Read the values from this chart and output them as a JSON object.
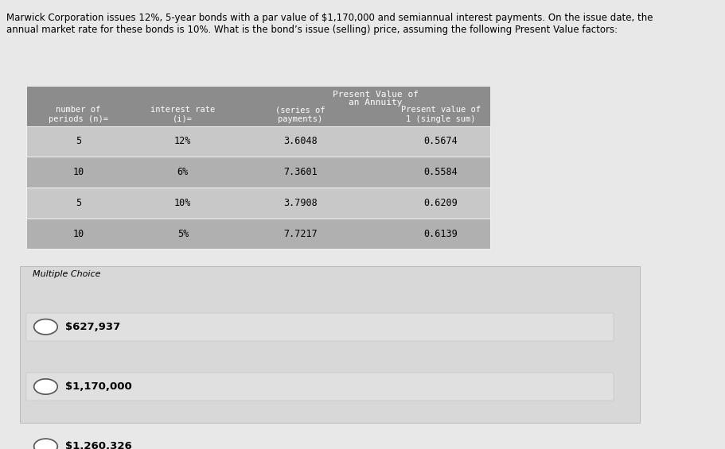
{
  "question_text": "Marwick Corporation issues 12%, 5-year bonds with a par value of $1,170,000 and semiannual interest payments. On the issue date, the\nannual market rate for these bonds is 10%. What is the bond’s issue (selling) price, assuming the following Present Value factors:",
  "table": {
    "header_row1": [
      "",
      "",
      "Present Value of",
      ""
    ],
    "header_row2": [
      "",
      "",
      "an Annuity",
      ""
    ],
    "header_row3": [
      "number of",
      "interest rate",
      "(series of",
      "Present value of"
    ],
    "header_row4": [
      "periods (n)=",
      "(i)=",
      "payments)",
      "1 (single sum)"
    ],
    "rows": [
      [
        "5",
        "12%",
        "3.6048",
        "0.5674"
      ],
      [
        "10",
        "6%",
        "7.3601",
        "0.5584"
      ],
      [
        "5",
        "10%",
        "3.7908",
        "0.6209"
      ],
      [
        "10",
        "5%",
        "7.7217",
        "0.6139"
      ]
    ]
  },
  "multiple_choice_label": "Multiple Choice",
  "choices": [
    "$627,937",
    "$1,170,000",
    "$1,260,326"
  ],
  "bg_color": "#e8e8e8",
  "table_header_bg": "#8c8c8c",
  "table_row_odd_bg": "#c8c8c8",
  "table_row_even_bg": "#b0b0b0",
  "mc_section_bg": "#d8d8d8",
  "choice_bg": "#e0e0e0",
  "text_color": "#000000",
  "header_text_color": "#ffffff"
}
